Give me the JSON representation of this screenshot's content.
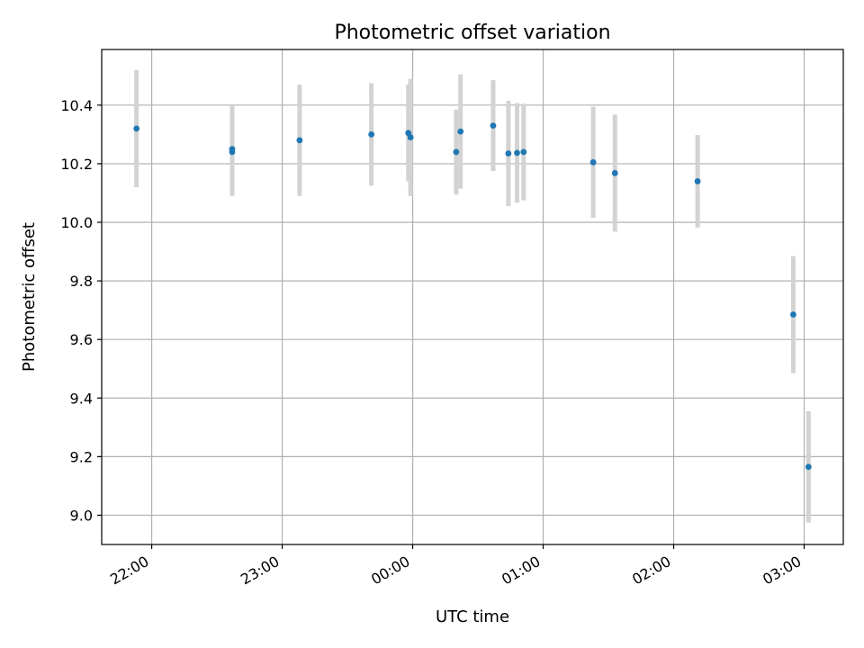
{
  "chart_data": {
    "type": "scatter",
    "title": "Photometric offset variation",
    "xlabel": "UTC time",
    "ylabel": "Photometric offset",
    "x_axis_type": "time",
    "xlim": [
      "21:37",
      "03:18"
    ],
    "ylim": [
      8.9,
      10.59
    ],
    "grid": true,
    "x_ticks": [
      "22:00",
      "23:00",
      "00:00",
      "01:00",
      "02:00",
      "03:00"
    ],
    "y_ticks": [
      "9.0",
      "9.2",
      "9.4",
      "9.6",
      "9.8",
      "10.0",
      "10.2",
      "10.4"
    ],
    "marker_color": "#1f77b4",
    "errorbar_color": "#d3d3d3",
    "points": [
      {
        "x": "21:53",
        "y": 10.32,
        "err": 0.2
      },
      {
        "x": "22:37",
        "y": 10.24,
        "err": 0.15
      },
      {
        "x": "22:37",
        "y": 10.25,
        "err": 0.15
      },
      {
        "x": "23:08",
        "y": 10.28,
        "err": 0.19
      },
      {
        "x": "23:41",
        "y": 10.3,
        "err": 0.175
      },
      {
        "x": "23:58",
        "y": 10.305,
        "err": 0.165
      },
      {
        "x": "23:59",
        "y": 10.29,
        "err": 0.2
      },
      {
        "x": "00:20",
        "y": 10.24,
        "err": 0.145
      },
      {
        "x": "00:22",
        "y": 10.31,
        "err": 0.195
      },
      {
        "x": "00:37",
        "y": 10.33,
        "err": 0.155
      },
      {
        "x": "00:44",
        "y": 10.235,
        "err": 0.18
      },
      {
        "x": "00:48",
        "y": 10.237,
        "err": 0.17
      },
      {
        "x": "00:51",
        "y": 10.24,
        "err": 0.165
      },
      {
        "x": "01:23",
        "y": 10.205,
        "err": 0.19
      },
      {
        "x": "01:33",
        "y": 10.168,
        "err": 0.2
      },
      {
        "x": "02:11",
        "y": 10.14,
        "err": 0.158
      },
      {
        "x": "02:55",
        "y": 9.685,
        "err": 0.2
      },
      {
        "x": "03:02",
        "y": 9.165,
        "err": 0.19
      }
    ]
  }
}
